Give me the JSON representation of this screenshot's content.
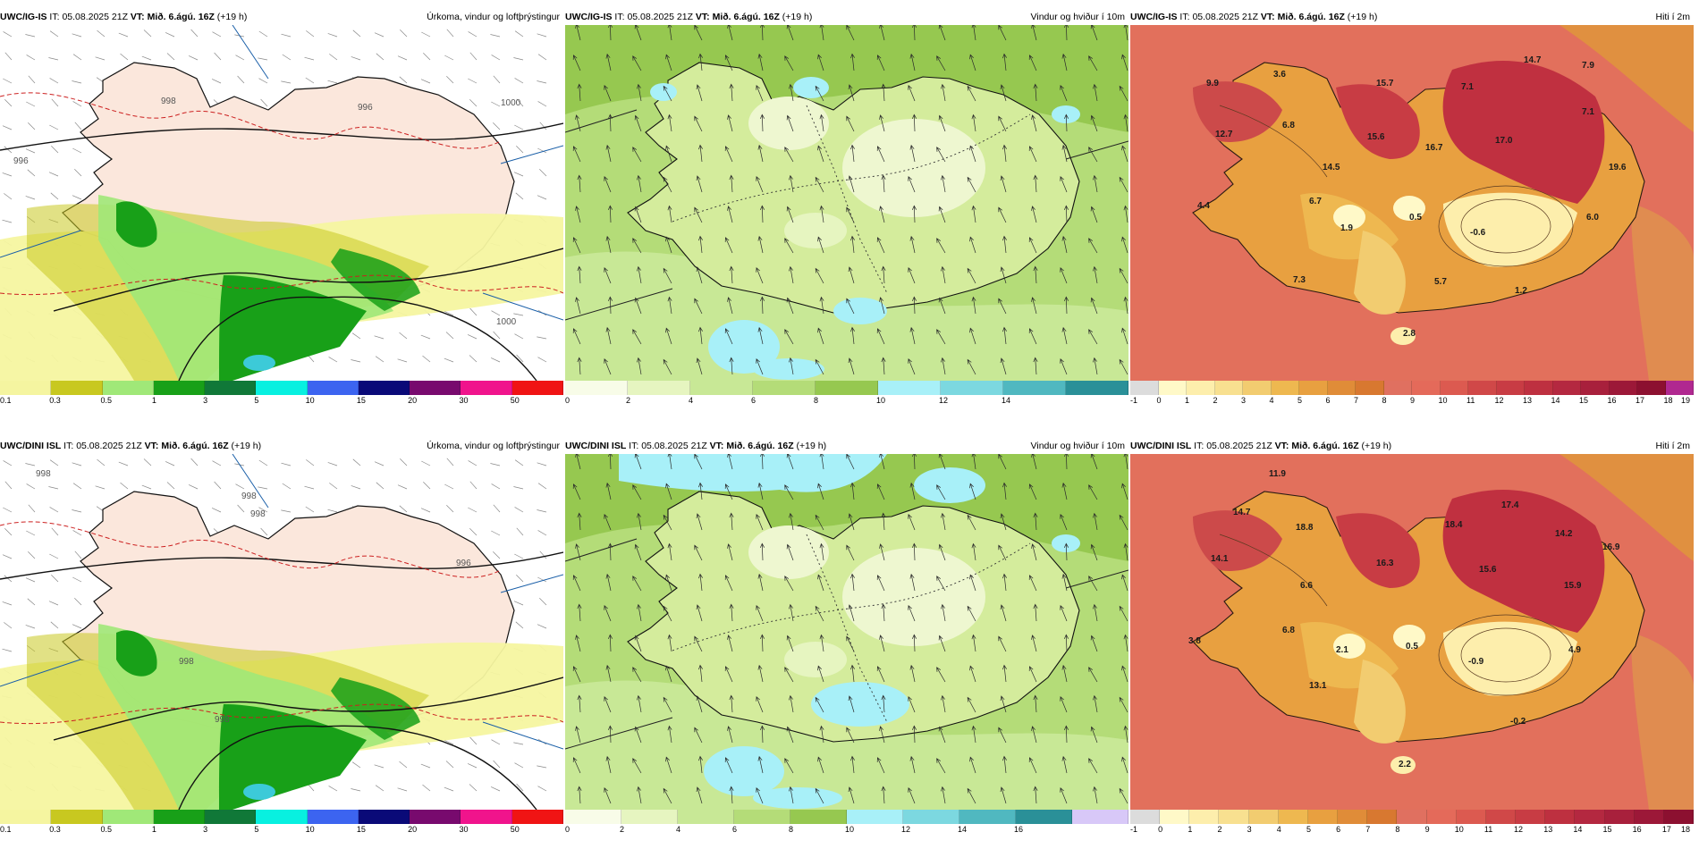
{
  "rows": [
    {
      "model": "UWC/IG-IS",
      "panels": [
        {
          "kind": "precip",
          "it_label": "IT:",
          "it_value": "05.08.2025 21Z",
          "vt_label": "VT:",
          "vt_value": "Mið. 6.ágú. 16Z",
          "offset": "(+19 h)",
          "title": "Úrkoma, vindur og loftþrýstingur",
          "isobar_labels": [
            "996",
            "998",
            "996",
            "1000",
            "1000"
          ],
          "legend_colors": [
            "#f5f5a0",
            "#c8c820",
            "#a0e878",
            "#18a018",
            "#107838",
            "#08f0e0",
            "#3c64f0",
            "#0a0a78",
            "#780a6e",
            "#f0148c",
            "#f01414"
          ],
          "legend_ticks": [
            "0.1",
            "0.3",
            "0.5",
            "1",
            "3",
            "5",
            "10",
            "15",
            "20",
            "30",
            "50"
          ]
        },
        {
          "kind": "wind",
          "it_label": "IT:",
          "it_value": "05.08.2025 21Z",
          "vt_label": "VT:",
          "vt_value": "Mið. 6.ágú. 16Z",
          "offset": "(+19 h)",
          "title": "Vindur og hviður í 10m",
          "legend_colors": [
            "#f8fce8",
            "#e6f5c0",
            "#c8e896",
            "#b4dc78",
            "#96c850",
            "#a8f0f8",
            "#7cd8e0",
            "#50b8c0",
            "#2a9098"
          ],
          "legend_ticks": [
            "0",
            "2",
            "4",
            "6",
            "8",
            "10",
            "12",
            "14"
          ]
        },
        {
          "kind": "temp",
          "it_label": "IT:",
          "it_value": "05.08.2025 21Z",
          "vt_label": "VT:",
          "vt_value": "Mið. 6.ágú. 16Z",
          "offset": "(+19 h)",
          "title": "Hiti í 2m",
          "temp_labels": [
            "9.9",
            "3.6",
            "12.7",
            "6.8",
            "15.7",
            "7.1",
            "14.7",
            "7.9",
            "7.1",
            "15.6",
            "16.7",
            "17.0",
            "14.5",
            "19.6",
            "4.4",
            "6.7",
            "1.9",
            "0.5",
            "6.0",
            "-0.6",
            "7.3",
            "5.7",
            "1.2",
            "2.8"
          ],
          "legend_colors": [
            "#dcdcdc",
            "#fff9c8",
            "#fdeeac",
            "#f8e090",
            "#f2cc70",
            "#eeb850",
            "#e8a040",
            "#e08c38",
            "#d87830",
            "#e07060",
            "#e46a5a",
            "#dc5a50",
            "#d04848",
            "#c83c44",
            "#be3040",
            "#b42840",
            "#a8203c",
            "#9c1838",
            "#8c1030",
            "#b02890"
          ],
          "legend_ticks": [
            "-1",
            "0",
            "1",
            "2",
            "3",
            "4",
            "5",
            "6",
            "7",
            "8",
            "9",
            "10",
            "11",
            "12",
            "13",
            "14",
            "15",
            "16",
            "17",
            "18",
            "19"
          ]
        }
      ]
    },
    {
      "model": "UWC/DINI ISL",
      "panels": [
        {
          "kind": "precip",
          "it_label": "IT:",
          "it_value": "05.08.2025 21Z",
          "vt_label": "VT:",
          "vt_value": "Mið. 6.ágú. 16Z",
          "offset": "(+19 h)",
          "title": "Úrkoma, vindur og loftþrýstingur",
          "isobar_labels": [
            "998",
            "998",
            "998",
            "996",
            "998",
            "998"
          ],
          "legend_colors": [
            "#f5f5a0",
            "#c8c820",
            "#a0e878",
            "#18a018",
            "#107838",
            "#08f0e0",
            "#3c64f0",
            "#0a0a78",
            "#780a6e",
            "#f0148c",
            "#f01414"
          ],
          "legend_ticks": [
            "0.1",
            "0.3",
            "0.5",
            "1",
            "3",
            "5",
            "10",
            "15",
            "20",
            "30",
            "50"
          ]
        },
        {
          "kind": "wind",
          "it_label": "IT:",
          "it_value": "05.08.2025 21Z",
          "vt_label": "VT:",
          "vt_value": "Mið. 6.ágú. 16Z",
          "offset": "(+19 h)",
          "title": "Vindur og hviður í 10m",
          "legend_colors": [
            "#f8fce8",
            "#e6f5c0",
            "#c8e896",
            "#b4dc78",
            "#96c850",
            "#a8f0f8",
            "#7cd8e0",
            "#50b8c0",
            "#2a9098",
            "#d8c8f8"
          ],
          "legend_ticks": [
            "0",
            "2",
            "4",
            "6",
            "8",
            "10",
            "12",
            "14",
            "16"
          ]
        },
        {
          "kind": "temp",
          "it_label": "IT:",
          "it_value": "05.08.2025 21Z",
          "vt_label": "VT:",
          "vt_value": "Mið. 6.ágú. 16Z",
          "offset": "(+19 h)",
          "title": "Hiti í 2m",
          "temp_labels": [
            "11.9",
            "14.7",
            "18.8",
            "17.4",
            "18.4",
            "14.2",
            "16.9",
            "14.1",
            "16.3",
            "15.6",
            "15.9",
            "6.6",
            "6.8",
            "3.8",
            "2.1",
            "0.5",
            "-0.9",
            "4.9",
            "13.1",
            "-0.2",
            "2.2"
          ],
          "legend_colors": [
            "#dcdcdc",
            "#fff9c8",
            "#fdeeac",
            "#f8e090",
            "#f2cc70",
            "#eeb850",
            "#e8a040",
            "#e08c38",
            "#d87830",
            "#e07060",
            "#e46a5a",
            "#dc5a50",
            "#d04848",
            "#c83c44",
            "#be3040",
            "#b42840",
            "#a8203c",
            "#9c1838",
            "#8c1030"
          ],
          "legend_ticks": [
            "-1",
            "0",
            "1",
            "2",
            "3",
            "4",
            "5",
            "6",
            "7",
            "8",
            "9",
            "10",
            "11",
            "12",
            "13",
            "14",
            "15",
            "16",
            "17",
            "18"
          ]
        }
      ]
    }
  ]
}
